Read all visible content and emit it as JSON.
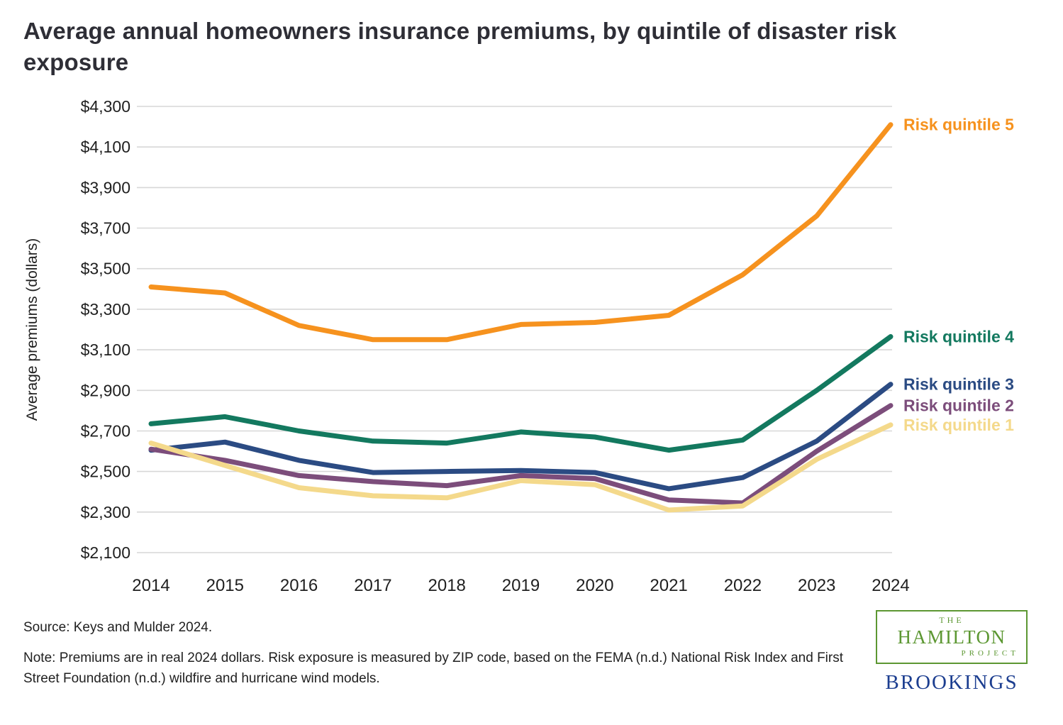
{
  "chart": {
    "title": "Average annual homeowners insurance premiums, by quintile of disaster risk exposure"
  },
  "chart_data": {
    "type": "line",
    "x": [
      "2014",
      "2015",
      "2016",
      "2017",
      "2018",
      "2019",
      "2020",
      "2021",
      "2022",
      "2023",
      "2024"
    ],
    "title": "Average annual homeowners insurance premiums, by quintile of disaster risk exposure",
    "xlabel": "",
    "ylabel": "Average premiums (dollars)",
    "ylim": [
      2100,
      4300
    ],
    "ytick_step": 200,
    "ytick_labels": [
      "$2,100",
      "$2,300",
      "$2,500",
      "$2,700",
      "$2,900",
      "$3,100",
      "$3,300",
      "$3,500",
      "$3,700",
      "$3,900",
      "$4,100",
      "$4,300"
    ],
    "grid": true,
    "legend_position": "right-end-labels",
    "series": [
      {
        "name": "Risk quintile 5",
        "color": "#F6921E",
        "values": [
          3410,
          3380,
          3220,
          3150,
          3150,
          3225,
          3235,
          3270,
          3470,
          3760,
          4210
        ]
      },
      {
        "name": "Risk quintile 4",
        "color": "#13795F",
        "values": [
          2735,
          2770,
          2700,
          2650,
          2640,
          2695,
          2670,
          2605,
          2655,
          2900,
          3165
        ]
      },
      {
        "name": "Risk quintile 3",
        "color": "#2B4B83",
        "values": [
          2605,
          2645,
          2555,
          2495,
          2500,
          2505,
          2495,
          2415,
          2470,
          2650,
          2930
        ]
      },
      {
        "name": "Risk quintile 2",
        "color": "#7C4D7B",
        "values": [
          2610,
          2555,
          2480,
          2450,
          2430,
          2480,
          2465,
          2360,
          2345,
          2600,
          2825
        ]
      },
      {
        "name": "Risk quintile 1",
        "color": "#F4D98B",
        "values": [
          2640,
          2530,
          2420,
          2380,
          2370,
          2455,
          2435,
          2310,
          2330,
          2560,
          2730
        ]
      }
    ]
  },
  "footer": {
    "source": "Source: Keys and Mulder 2024.",
    "note": "Note: Premiums are in real 2024 dollars. Risk exposure is measured by ZIP code, based on the FEMA (n.d.) National Risk Index and First Street Foundation (n.d.) wildfire and hurricane wind models.",
    "logos": {
      "hamilton_the": "THE",
      "hamilton_main": "HAMILTON",
      "hamilton_sub": "PROJECT",
      "brookings": "BROOKINGS"
    }
  }
}
